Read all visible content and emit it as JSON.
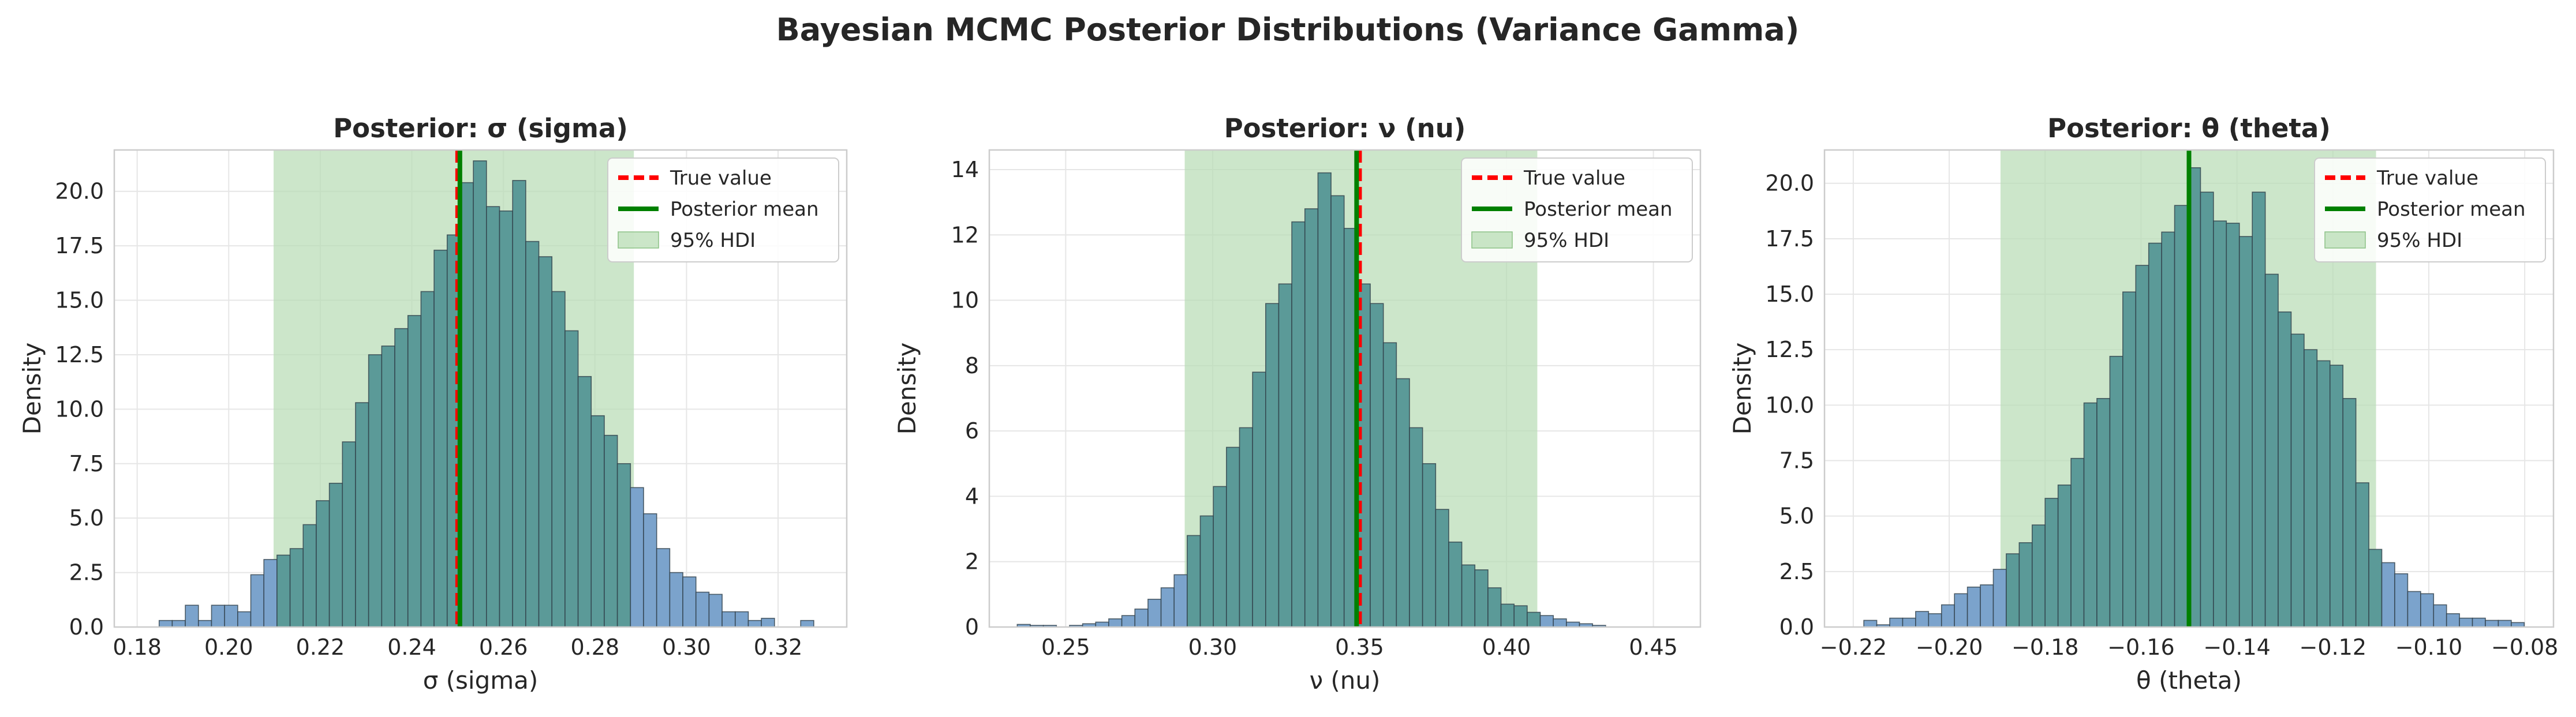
{
  "figure": {
    "suptitle": "Bayesian MCMC Posterior Distributions (Variance Gamma)"
  },
  "colors": {
    "hist_outside": "#7ba3cc",
    "hist_inside": "#5b9a98",
    "hdi_fill": "#b9ddb5",
    "true_value": "#ff0000",
    "posterior_mean": "#008000",
    "bar_edge": "#2f3f48"
  },
  "legend": {
    "entries": [
      "True value",
      "Posterior mean",
      "95% HDI"
    ],
    "placement": "upper right"
  },
  "chart_data": [
    {
      "type": "histogram",
      "title": "Posterior: σ (sigma)",
      "xlabel": "σ (sigma)",
      "ylabel": "Density",
      "xlim": [
        0.175,
        0.335
      ],
      "ylim": [
        0,
        21.9
      ],
      "xticks": [
        0.18,
        0.2,
        0.22,
        0.24,
        0.26,
        0.28,
        0.3,
        0.32
      ],
      "xtick_labels": [
        "0.18",
        "0.20",
        "0.22",
        "0.24",
        "0.26",
        "0.28",
        "0.30",
        "0.32"
      ],
      "yticks": [
        0,
        2.5,
        5,
        7.5,
        10,
        12.5,
        15,
        17.5,
        20
      ],
      "ytick_labels": [
        "0.0",
        "2.5",
        "5.0",
        "7.5",
        "10.0",
        "12.5",
        "15.0",
        "17.5",
        "20.0"
      ],
      "true_value": 0.25,
      "posterior_mean": 0.2505,
      "hdi": [
        0.2098,
        0.2885
      ],
      "bins": {
        "start": 0.1848,
        "width": 0.00286,
        "values": [
          0.3,
          0.3,
          1.0,
          0.3,
          1.0,
          1.0,
          0.7,
          2.4,
          3.1,
          3.3,
          3.6,
          4.7,
          5.8,
          6.6,
          8.5,
          10.3,
          12.5,
          12.9,
          13.7,
          14.3,
          15.4,
          17.3,
          18.0,
          20.4,
          21.4,
          19.3,
          19.1,
          20.5,
          17.7,
          17.0,
          15.4,
          13.6,
          11.5,
          9.7,
          8.8,
          7.5,
          6.4,
          5.2,
          3.6,
          2.5,
          2.3,
          1.6,
          1.5,
          0.7,
          0.7,
          0.3,
          0.4,
          0.0,
          0.0,
          0.3
        ]
      }
    },
    {
      "type": "histogram",
      "title": "Posterior: ν (nu)",
      "xlabel": "ν (nu)",
      "ylabel": "Density",
      "xlim": [
        0.224,
        0.466
      ],
      "ylim": [
        0,
        14.6
      ],
      "xticks": [
        0.25,
        0.3,
        0.35,
        0.4,
        0.45
      ],
      "xtick_labels": [
        "0.25",
        "0.30",
        "0.35",
        "0.40",
        "0.45"
      ],
      "yticks": [
        0,
        2,
        4,
        6,
        8,
        10,
        12,
        14
      ],
      "ytick_labels": [
        "0",
        "2",
        "4",
        "6",
        "8",
        "10",
        "12",
        "14"
      ],
      "true_value": 0.35,
      "posterior_mean": 0.349,
      "hdi": [
        0.2905,
        0.4105
      ],
      "bins": {
        "start": 0.2335,
        "width": 0.00445,
        "values": [
          0.08,
          0.05,
          0.05,
          0.0,
          0.05,
          0.1,
          0.15,
          0.25,
          0.35,
          0.55,
          0.85,
          1.2,
          1.6,
          2.8,
          3.4,
          4.3,
          5.5,
          6.1,
          7.8,
          9.9,
          10.5,
          12.4,
          12.8,
          13.9,
          13.2,
          12.2,
          10.5,
          9.9,
          8.7,
          7.6,
          6.1,
          5.0,
          3.6,
          2.6,
          1.9,
          1.75,
          1.2,
          0.7,
          0.65,
          0.45,
          0.35,
          0.25,
          0.15,
          0.1,
          0.05
        ]
      }
    },
    {
      "type": "histogram",
      "title": "Posterior: θ (theta)",
      "xlabel": "θ (theta)",
      "ylabel": "Density",
      "xlim": [
        -0.226,
        -0.074
      ],
      "ylim": [
        0,
        21.5
      ],
      "xticks": [
        -0.22,
        -0.2,
        -0.18,
        -0.16,
        -0.14,
        -0.12,
        -0.1,
        -0.08
      ],
      "xtick_labels": [
        "−0.22",
        "−0.20",
        "−0.18",
        "−0.16",
        "−0.14",
        "−0.12",
        "−0.10",
        "−0.08"
      ],
      "yticks": [
        0,
        2.5,
        5,
        7.5,
        10,
        12.5,
        15,
        17.5,
        20
      ],
      "ytick_labels": [
        "0.0",
        "2.5",
        "5.0",
        "7.5",
        "10.0",
        "12.5",
        "15.0",
        "17.5",
        "20.0"
      ],
      "true_value": -0.15,
      "posterior_mean": -0.15,
      "hdi": [
        -0.1893,
        -0.111
      ],
      "bins": {
        "start": -0.2178,
        "width": 0.0027,
        "values": [
          0.3,
          0.1,
          0.4,
          0.4,
          0.7,
          0.6,
          1.0,
          1.5,
          1.8,
          1.9,
          2.6,
          3.3,
          3.8,
          4.6,
          5.8,
          6.4,
          7.6,
          10.1,
          10.3,
          12.2,
          15.1,
          16.3,
          17.3,
          17.8,
          19.0,
          20.7,
          19.6,
          18.3,
          18.2,
          17.6,
          19.6,
          15.9,
          14.2,
          13.2,
          12.5,
          12.0,
          11.8,
          10.3,
          6.5,
          3.5,
          2.9,
          2.4,
          1.6,
          1.5,
          1.0,
          0.6,
          0.4,
          0.4,
          0.3,
          0.3,
          0.2
        ]
      }
    }
  ]
}
